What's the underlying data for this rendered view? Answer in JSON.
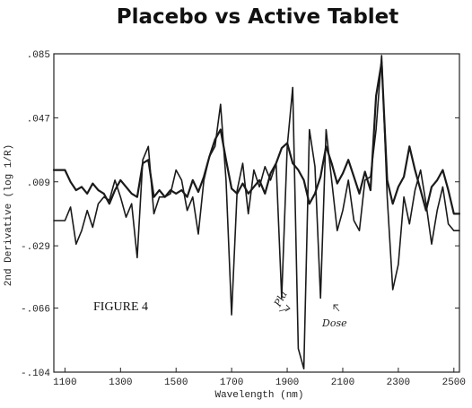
{
  "chart_data": {
    "type": "line",
    "title": "Placebo vs Active Tablet",
    "xlabel": "Wavelength (nm)",
    "ylabel": "2nd Derivative (log 1/R)",
    "xlim": [
      1060,
      2520
    ],
    "ylim": [
      -0.104,
      0.085
    ],
    "x_ticks": [
      {
        "value": 1100,
        "label": "1100"
      },
      {
        "value": 1300,
        "label": "1300"
      },
      {
        "value": 1500,
        "label": "1500"
      },
      {
        "value": 1700,
        "label": "1700"
      },
      {
        "value": 1900,
        "label": "1900"
      },
      {
        "value": 2100,
        "label": "2100"
      },
      {
        "value": 2300,
        "label": "2300"
      },
      {
        "value": 2500,
        "label": "2500"
      }
    ],
    "y_ticks": [
      {
        "value": 0.085,
        "label": ".085"
      },
      {
        "value": 0.047,
        "label": ".047"
      },
      {
        "value": 0.009,
        "label": ".009"
      },
      {
        "value": -0.029,
        "label": "-.029"
      },
      {
        "value": -0.066,
        "label": "-.066"
      },
      {
        "value": -0.104,
        "label": "-.104"
      }
    ],
    "grid": false,
    "annotations": {
      "figure_label": "FIGURE 4",
      "placebo_note": "Pla",
      "dose_note": "Dose"
    },
    "series": [
      {
        "x": [
          1060,
          1100,
          1120,
          1140,
          1160,
          1180,
          1200,
          1220,
          1240,
          1260,
          1280,
          1300,
          1320,
          1340,
          1360,
          1380,
          1400,
          1420,
          1440,
          1460,
          1480,
          1500,
          1520,
          1540,
          1560,
          1580,
          1600,
          1620,
          1640,
          1660,
          1680,
          1700,
          1720,
          1740,
          1760,
          1780,
          1800,
          1820,
          1840,
          1860,
          1880,
          1900,
          1920,
          1940,
          1960,
          1980,
          2000,
          2020,
          2040,
          2060,
          2080,
          2100,
          2120,
          2140,
          2160,
          2180,
          2200,
          2220,
          2240,
          2260,
          2280,
          2300,
          2320,
          2340,
          2360,
          2380,
          2400,
          2420,
          2440,
          2460,
          2480,
          2500,
          2520
        ],
        "y": [
          0.016,
          0.016,
          0.009,
          0.004,
          0.006,
          0.002,
          0.008,
          0.004,
          0.002,
          -0.004,
          0.004,
          0.01,
          0.006,
          0.002,
          0.0,
          0.02,
          0.022,
          0.0,
          0.004,
          0.0,
          0.004,
          0.002,
          0.004,
          0.0,
          0.01,
          0.003,
          0.012,
          0.024,
          0.034,
          0.04,
          0.022,
          0.005,
          0.002,
          0.008,
          0.002,
          0.006,
          0.01,
          0.002,
          0.014,
          0.02,
          0.029,
          0.032,
          0.02,
          0.016,
          0.01,
          -0.004,
          0.002,
          0.012,
          0.03,
          0.02,
          0.008,
          0.014,
          0.022,
          0.012,
          0.002,
          0.015,
          0.004,
          0.06,
          0.08,
          0.01,
          -0.004,
          0.006,
          0.012,
          0.03,
          0.016,
          0.004,
          -0.008,
          0.006,
          0.01,
          0.016,
          0.004,
          -0.01,
          -0.01
        ]
      },
      {
        "x": [
          1060,
          1100,
          1120,
          1140,
          1160,
          1180,
          1200,
          1220,
          1240,
          1260,
          1280,
          1300,
          1320,
          1340,
          1360,
          1380,
          1400,
          1420,
          1440,
          1460,
          1480,
          1500,
          1520,
          1540,
          1560,
          1580,
          1600,
          1620,
          1640,
          1660,
          1680,
          1700,
          1720,
          1740,
          1760,
          1780,
          1800,
          1820,
          1840,
          1860,
          1880,
          1900,
          1920,
          1940,
          1960,
          1980,
          2000,
          2020,
          2040,
          2060,
          2080,
          2100,
          2120,
          2140,
          2160,
          2180,
          2200,
          2220,
          2240,
          2260,
          2280,
          2300,
          2320,
          2340,
          2360,
          2380,
          2400,
          2420,
          2440,
          2460,
          2480,
          2500,
          2520
        ],
        "y": [
          -0.014,
          -0.014,
          -0.006,
          -0.028,
          -0.02,
          -0.008,
          -0.018,
          -0.004,
          0.0,
          -0.002,
          0.01,
          0.0,
          -0.012,
          -0.004,
          -0.036,
          0.022,
          0.03,
          -0.01,
          0.0,
          0.0,
          0.002,
          0.016,
          0.01,
          -0.008,
          0.0,
          -0.022,
          0.01,
          0.024,
          0.03,
          0.055,
          0.01,
          -0.07,
          0.004,
          0.02,
          -0.01,
          0.016,
          0.006,
          0.018,
          0.01,
          0.02,
          -0.06,
          0.03,
          0.065,
          -0.09,
          -0.102,
          0.04,
          0.018,
          -0.06,
          0.04,
          0.01,
          -0.02,
          -0.008,
          0.01,
          -0.014,
          -0.02,
          0.01,
          0.012,
          0.04,
          0.084,
          0.0,
          -0.055,
          -0.04,
          0.0,
          -0.016,
          0.004,
          0.016,
          -0.004,
          -0.028,
          -0.008,
          0.006,
          -0.016,
          -0.02,
          -0.02
        ]
      }
    ]
  }
}
